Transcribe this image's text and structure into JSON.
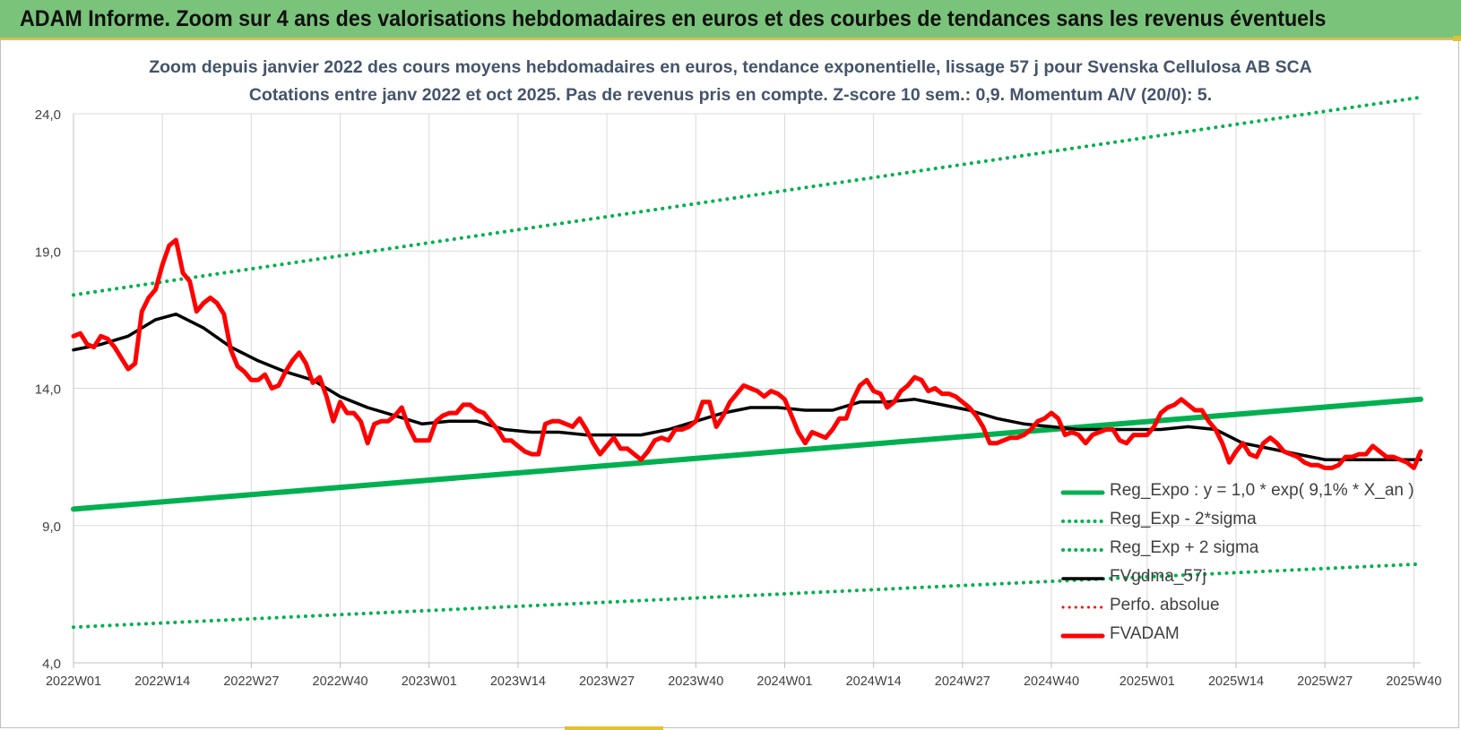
{
  "header": {
    "title": "ADAM Informe. Zoom sur 4 ans des valorisations hebdomadaires en euros et des courbes de tendances sans les revenus éventuels",
    "background_color": "#7ac37a"
  },
  "chart_data": {
    "type": "line",
    "title": "Zoom depuis janvier 2022 des cours moyens hebdomadaires en euros, tendance exponentielle, lissage 57 j pour Svenska Cellulosa AB SCA",
    "subtitle": "Cotations entre janv 2022 et oct 2025. Pas de revenus pris en compte. Z-score 10 sem.: 0,9. Momentum A/V (20/0): 5.",
    "xlabel": "",
    "ylabel": "",
    "ylim": [
      4,
      24
    ],
    "y_ticks": [
      "4,0",
      "9,0",
      "14,0",
      "19,0",
      "24,0"
    ],
    "x_range": [
      1,
      198
    ],
    "x_ticks": [
      {
        "week_index": 1,
        "label": "2022W01"
      },
      {
        "week_index": 14,
        "label": "2022W14"
      },
      {
        "week_index": 27,
        "label": "2022W27"
      },
      {
        "week_index": 40,
        "label": "2022W40"
      },
      {
        "week_index": 53,
        "label": "2023W01"
      },
      {
        "week_index": 66,
        "label": "2023W14"
      },
      {
        "week_index": 79,
        "label": "2023W27"
      },
      {
        "week_index": 92,
        "label": "2023W40"
      },
      {
        "week_index": 105,
        "label": "2024W01"
      },
      {
        "week_index": 118,
        "label": "2024W14"
      },
      {
        "week_index": 131,
        "label": "2024W27"
      },
      {
        "week_index": 144,
        "label": "2024W40"
      },
      {
        "week_index": 158,
        "label": "2025W01"
      },
      {
        "week_index": 171,
        "label": "2025W14"
      },
      {
        "week_index": 184,
        "label": "2025W27"
      },
      {
        "week_index": 197,
        "label": "2025W40"
      }
    ],
    "grid": {
      "horizontal": true,
      "vertical": true
    },
    "legend_position": "bottom-right",
    "series": [
      {
        "name": "Reg_Expo : y = 1,0 * exp( 9,1% *  X_an )",
        "color": "#00b050",
        "style": "solid",
        "width": 6,
        "points": [
          [
            1,
            9.6
          ],
          [
            198,
            13.6
          ]
        ]
      },
      {
        "name": "Reg_Exp - 2*sigma",
        "color": "#00b050",
        "style": "dotted",
        "width": 4,
        "points": [
          [
            1,
            5.3
          ],
          [
            198,
            7.6
          ]
        ]
      },
      {
        "name": "Reg_Exp + 2 sigma",
        "color": "#00b050",
        "style": "dotted",
        "width": 4,
        "points": [
          [
            1,
            17.4
          ],
          [
            198,
            24.6
          ]
        ]
      },
      {
        "name": "FVgdma_57j",
        "color": "#000000",
        "style": "solid",
        "width": 3.5,
        "points": [
          [
            1,
            15.4
          ],
          [
            5,
            15.6
          ],
          [
            9,
            15.9
          ],
          [
            13,
            16.5
          ],
          [
            16,
            16.7
          ],
          [
            20,
            16.2
          ],
          [
            24,
            15.5
          ],
          [
            28,
            15
          ],
          [
            32,
            14.6
          ],
          [
            36,
            14.3
          ],
          [
            40,
            13.7
          ],
          [
            44,
            13.3
          ],
          [
            48,
            13
          ],
          [
            52,
            12.7
          ],
          [
            56,
            12.8
          ],
          [
            60,
            12.8
          ],
          [
            64,
            12.5
          ],
          [
            68,
            12.4
          ],
          [
            72,
            12.4
          ],
          [
            76,
            12.3
          ],
          [
            80,
            12.3
          ],
          [
            84,
            12.3
          ],
          [
            88,
            12.5
          ],
          [
            92,
            12.8
          ],
          [
            96,
            13.1
          ],
          [
            100,
            13.3
          ],
          [
            104,
            13.3
          ],
          [
            108,
            13.2
          ],
          [
            112,
            13.2
          ],
          [
            116,
            13.5
          ],
          [
            120,
            13.5
          ],
          [
            124,
            13.6
          ],
          [
            128,
            13.4
          ],
          [
            132,
            13.2
          ],
          [
            136,
            12.9
          ],
          [
            140,
            12.7
          ],
          [
            144,
            12.6
          ],
          [
            148,
            12.5
          ],
          [
            152,
            12.5
          ],
          [
            156,
            12.5
          ],
          [
            160,
            12.5
          ],
          [
            164,
            12.6
          ],
          [
            168,
            12.5
          ],
          [
            172,
            12
          ],
          [
            176,
            11.8
          ],
          [
            180,
            11.6
          ],
          [
            184,
            11.4
          ],
          [
            188,
            11.4
          ],
          [
            192,
            11.4
          ],
          [
            198,
            11.4
          ]
        ]
      },
      {
        "name": "Perfo. absolue",
        "color": "#ff0000",
        "style": "dotted",
        "width": 3,
        "points": []
      },
      {
        "name": "FVADAM",
        "color": "#ff0000",
        "style": "solid",
        "width": 5,
        "points": [
          [
            1,
            15.9
          ],
          [
            2,
            16
          ],
          [
            3,
            15.6
          ],
          [
            4,
            15.5
          ],
          [
            5,
            15.9
          ],
          [
            6,
            15.8
          ],
          [
            7,
            15.5
          ],
          [
            8,
            15.1
          ],
          [
            9,
            14.7
          ],
          [
            10,
            14.9
          ],
          [
            11,
            16.8
          ],
          [
            12,
            17.3
          ],
          [
            13,
            17.6
          ],
          [
            14,
            18.5
          ],
          [
            15,
            19.2
          ],
          [
            16,
            19.4
          ],
          [
            17,
            18.2
          ],
          [
            18,
            17.9
          ],
          [
            19,
            16.8
          ],
          [
            20,
            17.1
          ],
          [
            21,
            17.3
          ],
          [
            22,
            17.1
          ],
          [
            23,
            16.7
          ],
          [
            24,
            15.4
          ],
          [
            25,
            14.8
          ],
          [
            26,
            14.6
          ],
          [
            27,
            14.3
          ],
          [
            28,
            14.3
          ],
          [
            29,
            14.5
          ],
          [
            30,
            14
          ],
          [
            31,
            14.1
          ],
          [
            32,
            14.6
          ],
          [
            33,
            15
          ],
          [
            34,
            15.3
          ],
          [
            35,
            14.9
          ],
          [
            36,
            14.2
          ],
          [
            37,
            14.4
          ],
          [
            38,
            13.7
          ],
          [
            39,
            12.8
          ],
          [
            40,
            13.5
          ],
          [
            41,
            13.1
          ],
          [
            42,
            13.1
          ],
          [
            43,
            12.8
          ],
          [
            44,
            12
          ],
          [
            45,
            12.7
          ],
          [
            46,
            12.8
          ],
          [
            47,
            12.8
          ],
          [
            48,
            13
          ],
          [
            49,
            13.3
          ],
          [
            50,
            12.6
          ],
          [
            51,
            12.1
          ],
          [
            52,
            12.1
          ],
          [
            53,
            12.1
          ],
          [
            54,
            12.8
          ],
          [
            55,
            13
          ],
          [
            56,
            13.1
          ],
          [
            57,
            13.1
          ],
          [
            58,
            13.4
          ],
          [
            59,
            13.4
          ],
          [
            60,
            13.2
          ],
          [
            61,
            13.1
          ],
          [
            62,
            12.8
          ],
          [
            63,
            12.5
          ],
          [
            64,
            12.1
          ],
          [
            65,
            12.1
          ],
          [
            66,
            11.9
          ],
          [
            67,
            11.7
          ],
          [
            68,
            11.6
          ],
          [
            69,
            11.6
          ],
          [
            70,
            12.7
          ],
          [
            71,
            12.8
          ],
          [
            72,
            12.8
          ],
          [
            73,
            12.7
          ],
          [
            74,
            12.6
          ],
          [
            75,
            12.9
          ],
          [
            76,
            12.5
          ],
          [
            77,
            12
          ],
          [
            78,
            11.6
          ],
          [
            79,
            11.9
          ],
          [
            80,
            12.2
          ],
          [
            81,
            11.8
          ],
          [
            82,
            11.8
          ],
          [
            83,
            11.6
          ],
          [
            84,
            11.4
          ],
          [
            85,
            11.7
          ],
          [
            86,
            12.1
          ],
          [
            87,
            12.2
          ],
          [
            88,
            12.1
          ],
          [
            89,
            12.5
          ],
          [
            90,
            12.5
          ],
          [
            91,
            12.6
          ],
          [
            92,
            12.8
          ],
          [
            93,
            13.5
          ],
          [
            94,
            13.5
          ],
          [
            95,
            12.6
          ],
          [
            96,
            13
          ],
          [
            97,
            13.5
          ],
          [
            98,
            13.8
          ],
          [
            99,
            14.1
          ],
          [
            100,
            14
          ],
          [
            101,
            13.9
          ],
          [
            102,
            13.7
          ],
          [
            103,
            13.9
          ],
          [
            104,
            13.8
          ],
          [
            105,
            13.6
          ],
          [
            106,
            13
          ],
          [
            107,
            12.4
          ],
          [
            108,
            12
          ],
          [
            109,
            12.4
          ],
          [
            110,
            12.3
          ],
          [
            111,
            12.2
          ],
          [
            112,
            12.5
          ],
          [
            113,
            12.9
          ],
          [
            114,
            12.9
          ],
          [
            115,
            13.6
          ],
          [
            116,
            14.1
          ],
          [
            117,
            14.3
          ],
          [
            118,
            13.9
          ],
          [
            119,
            13.8
          ],
          [
            120,
            13.3
          ],
          [
            121,
            13.5
          ],
          [
            122,
            13.9
          ],
          [
            123,
            14.1
          ],
          [
            124,
            14.4
          ],
          [
            125,
            14.3
          ],
          [
            126,
            13.9
          ],
          [
            127,
            14
          ],
          [
            128,
            13.8
          ],
          [
            129,
            13.8
          ],
          [
            130,
            13.7
          ],
          [
            131,
            13.5
          ],
          [
            132,
            13.3
          ],
          [
            133,
            13
          ],
          [
            134,
            12.6
          ],
          [
            135,
            12
          ],
          [
            136,
            12
          ],
          [
            137,
            12.1
          ],
          [
            138,
            12.2
          ],
          [
            139,
            12.2
          ],
          [
            140,
            12.3
          ],
          [
            141,
            12.5
          ],
          [
            142,
            12.8
          ],
          [
            143,
            12.9
          ],
          [
            144,
            13.1
          ],
          [
            145,
            12.9
          ],
          [
            146,
            12.3
          ],
          [
            147,
            12.4
          ],
          [
            148,
            12.3
          ],
          [
            149,
            12
          ],
          [
            150,
            12.3
          ],
          [
            151,
            12.4
          ],
          [
            152,
            12.5
          ],
          [
            153,
            12.5
          ],
          [
            154,
            12.1
          ],
          [
            155,
            12
          ],
          [
            156,
            12.3
          ],
          [
            157,
            12.3
          ],
          [
            158,
            12.3
          ],
          [
            159,
            12.6
          ],
          [
            160,
            13.1
          ],
          [
            161,
            13.3
          ],
          [
            162,
            13.4
          ],
          [
            163,
            13.6
          ],
          [
            164,
            13.4
          ],
          [
            165,
            13.2
          ],
          [
            166,
            13.2
          ],
          [
            167,
            12.8
          ],
          [
            168,
            12.5
          ],
          [
            169,
            12
          ],
          [
            170,
            11.3
          ],
          [
            171,
            11.7
          ],
          [
            172,
            12
          ],
          [
            173,
            11.6
          ],
          [
            174,
            11.5
          ],
          [
            175,
            12
          ],
          [
            176,
            12.2
          ],
          [
            177,
            12
          ],
          [
            178,
            11.7
          ],
          [
            179,
            11.6
          ],
          [
            180,
            11.5
          ],
          [
            181,
            11.3
          ],
          [
            182,
            11.2
          ],
          [
            183,
            11.2
          ],
          [
            184,
            11.1
          ],
          [
            185,
            11.1
          ],
          [
            186,
            11.2
          ],
          [
            187,
            11.5
          ],
          [
            188,
            11.5
          ],
          [
            189,
            11.6
          ],
          [
            190,
            11.6
          ],
          [
            191,
            11.9
          ],
          [
            192,
            11.7
          ],
          [
            193,
            11.5
          ],
          [
            194,
            11.5
          ],
          [
            195,
            11.4
          ],
          [
            196,
            11.3
          ],
          [
            197,
            11.1
          ],
          [
            198,
            11.7
          ]
        ]
      }
    ]
  }
}
